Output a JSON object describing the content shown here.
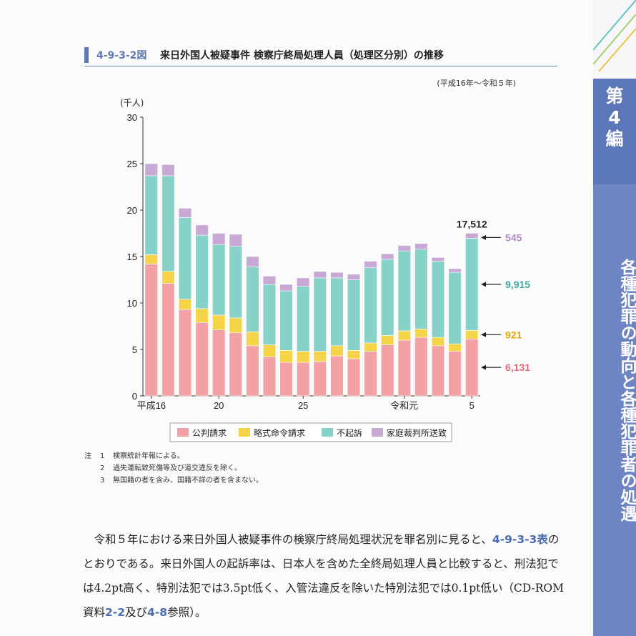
{
  "figure": {
    "number": "4-9-3-2図",
    "title": "来日外国人被疑事件 検察庁終局処理人員（処理区分別）の推移",
    "period": "(平成16年〜令和５年)"
  },
  "chart_data": {
    "type": "bar",
    "stacked": true,
    "ylabel": "(千人)",
    "ylim": [
      0,
      30
    ],
    "yticks": [
      0,
      5,
      10,
      15,
      20,
      25,
      30
    ],
    "x_tick_labels": [
      "平成16",
      "",
      "",
      "",
      "20",
      "",
      "",
      "",
      "",
      "25",
      "",
      "",
      "",
      "",
      "",
      "令和元",
      "",
      "",
      "",
      "5"
    ],
    "series": [
      {
        "name": "公判請求",
        "color": "#f4a1a6",
        "values": [
          14.2,
          12.1,
          9.3,
          7.9,
          7.1,
          6.8,
          5.4,
          4.2,
          3.6,
          3.6,
          3.7,
          4.3,
          4.0,
          4.8,
          5.5,
          6.0,
          6.3,
          5.4,
          4.8,
          6.131
        ]
      },
      {
        "name": "略式命令請求",
        "color": "#f5d547",
        "values": [
          1.0,
          1.3,
          1.1,
          1.5,
          1.6,
          1.6,
          1.5,
          1.3,
          1.3,
          1.2,
          1.1,
          1.1,
          0.9,
          0.9,
          1.0,
          1.0,
          0.9,
          0.9,
          0.8,
          0.921
        ]
      },
      {
        "name": "不起訴",
        "color": "#86d1c8",
        "values": [
          8.5,
          10.3,
          8.8,
          7.9,
          7.6,
          7.7,
          7.0,
          6.5,
          6.4,
          7.0,
          7.9,
          7.3,
          7.6,
          8.1,
          8.2,
          8.6,
          8.6,
          8.2,
          7.7,
          9.915
        ]
      },
      {
        "name": "家庭裁判所送致",
        "color": "#c8a8d4",
        "values": [
          1.3,
          1.2,
          1.0,
          1.1,
          1.2,
          1.3,
          1.1,
          0.9,
          0.7,
          0.9,
          0.7,
          0.6,
          0.6,
          0.7,
          0.6,
          0.6,
          0.6,
          0.4,
          0.4,
          0.545
        ]
      }
    ],
    "total_label": "17,512",
    "last_labels": [
      {
        "series": "家庭裁判所送致",
        "text": "545",
        "color": "#b08ac6"
      },
      {
        "series": "不起訴",
        "text": "9,915",
        "color": "#3fa99c"
      },
      {
        "series": "略式命令請求",
        "text": "921",
        "color": "#e0a800"
      },
      {
        "series": "公判請求",
        "text": "6,131",
        "color": "#e06a78"
      }
    ],
    "legend_position": "bottom"
  },
  "notes": {
    "lead": "注",
    "items": [
      {
        "num": "1",
        "text": "検察統計年報による。"
      },
      {
        "num": "2",
        "text": "過失運転致死傷等及び道交違反を除く。"
      },
      {
        "num": "3",
        "text": "無国籍の者を含み、国籍不詳の者を含まない。"
      }
    ]
  },
  "body": {
    "t1": "令和５年における来日外国人被疑事件の検察庁終局処理状況を罪名別に見ると、",
    "r1": "4-9-3-3表",
    "t2": "のとおりである。来日外国人の起訴率は、日本人を含めた全終局処理人員と比較すると、刑法犯では4.2pt高く、特別法犯では3.5pt低く、入管法違反を除いた特別法犯では0.1pt低い（CD-ROM資料",
    "r2": "2-2",
    "t3": "及び",
    "r3": "4-8",
    "t4": "参照）。"
  },
  "side": {
    "volume": "第4編",
    "chapter": "各種犯罪の動向と各種犯罪者の処遇"
  }
}
